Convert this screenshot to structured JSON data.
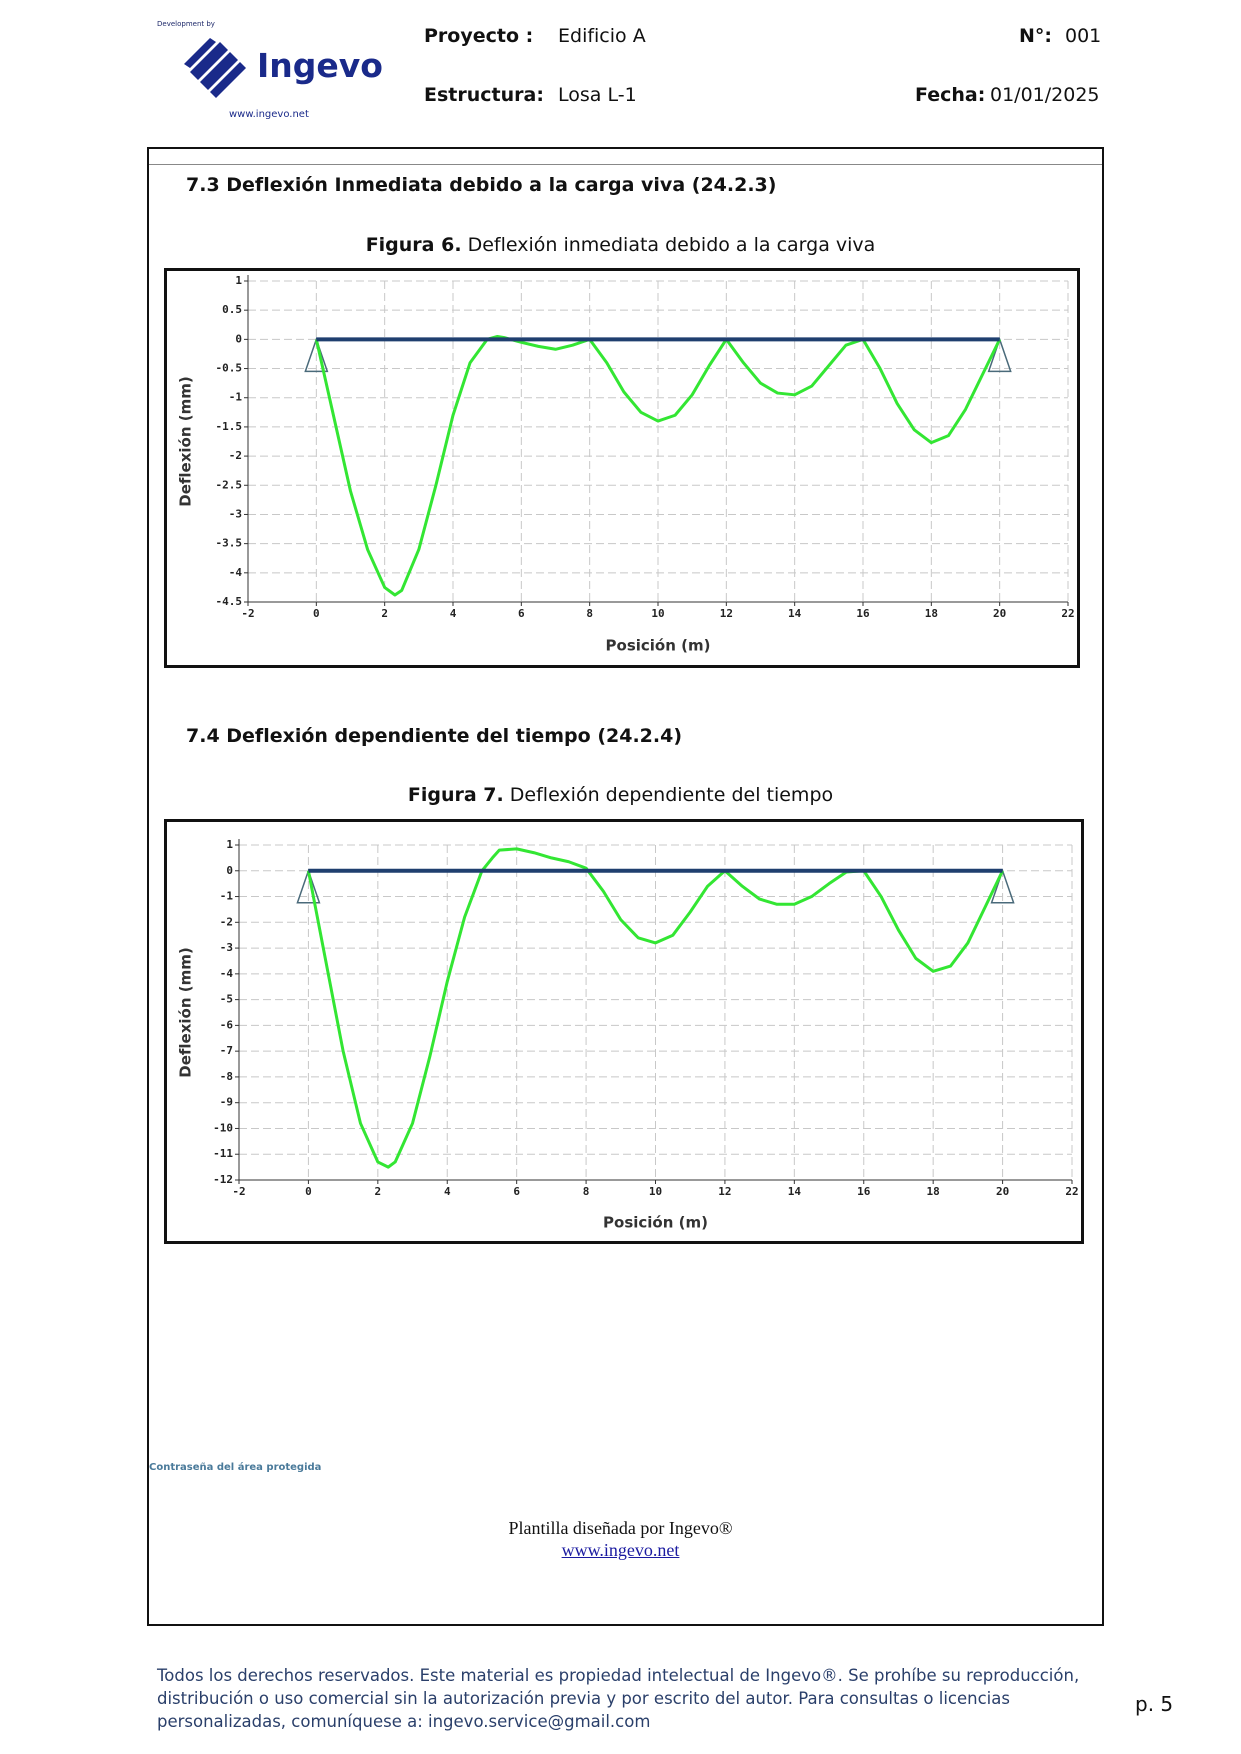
{
  "header": {
    "developed_by": "Development by",
    "logo_name": "Ingevo",
    "logo_url": "www.ingevo.net",
    "project_label": "Proyecto :",
    "project": "Edificio A",
    "number_label": "N°:",
    "number": "001",
    "structure_label": "Estructura:",
    "structure": "Losa L-1",
    "date_label": "Fecha:",
    "date": "01/01/2025"
  },
  "sections": [
    {
      "heading": "7.3 Deflexión Inmediata debido a la carga viva (24.2.3)",
      "figure_label": "Figura 6.",
      "figure_caption": "Deflexión inmediata debido a la carga viva"
    },
    {
      "heading": "7.4 Deflexión dependiente del tiempo (24.2.4)",
      "figure_label": "Figura 7.",
      "figure_caption": "Deflexión dependiente del tiempo"
    }
  ],
  "chart_data": [
    {
      "type": "line",
      "x_label": "Posición (m)",
      "y_label": "Deflexión (mm)",
      "grid": true,
      "xlim": [
        -2,
        22
      ],
      "xticks": [
        -2,
        0,
        2,
        4,
        6,
        8,
        10,
        12,
        14,
        16,
        18,
        20,
        22
      ],
      "ylim": [
        -4.5,
        1
      ],
      "yticks": [
        1,
        0.5,
        0,
        -0.5,
        -1,
        -1.5,
        -2,
        -2.5,
        -3,
        -3.5,
        -4,
        -4.5
      ],
      "series": [
        {
          "color": "#33e633",
          "x": [
            0,
            0.5,
            1,
            1.5,
            2,
            2.3,
            2.5,
            3,
            3.5,
            4,
            4.5,
            5,
            5.3,
            5.5,
            6,
            6.5,
            7,
            7.5,
            8,
            8.5,
            9,
            9.5,
            10,
            10.5,
            11,
            11.5,
            12,
            12.5,
            13,
            13.5,
            14,
            14.5,
            15,
            15.5,
            16,
            16.5,
            17,
            17.5,
            18,
            18.5,
            19,
            19.5,
            20
          ],
          "values": [
            0,
            -1.3,
            -2.6,
            -3.6,
            -4.25,
            -4.38,
            -4.3,
            -3.6,
            -2.5,
            -1.3,
            -0.4,
            0,
            0.05,
            0.03,
            -0.05,
            -0.12,
            -0.17,
            -0.1,
            0,
            -0.4,
            -0.9,
            -1.25,
            -1.4,
            -1.3,
            -0.95,
            -0.45,
            0,
            -0.4,
            -0.75,
            -0.92,
            -0.95,
            -0.8,
            -0.45,
            -0.1,
            0,
            -0.5,
            -1.1,
            -1.55,
            -1.77,
            -1.65,
            -1.2,
            -0.6,
            0
          ]
        },
        {
          "color": "#1f3f6f",
          "x": [
            0,
            20
          ],
          "values": [
            0,
            0
          ]
        }
      ]
    },
    {
      "type": "line",
      "x_label": "Posición (m)",
      "y_label": "Deflexión (mm)",
      "grid": true,
      "xlim": [
        -2,
        22
      ],
      "xticks": [
        -2,
        0,
        2,
        4,
        6,
        8,
        10,
        12,
        14,
        16,
        18,
        20,
        22
      ],
      "ylim": [
        -12,
        1
      ],
      "yticks": [
        1,
        0,
        -1,
        -2,
        -3,
        -4,
        -5,
        -6,
        -7,
        -8,
        -9,
        -10,
        -11,
        -12
      ],
      "series": [
        {
          "color": "#33e633",
          "x": [
            0,
            0.5,
            1,
            1.5,
            2,
            2.3,
            2.5,
            3,
            3.5,
            4,
            4.5,
            5,
            5.3,
            5.5,
            6,
            6.5,
            7,
            7.5,
            8,
            8.5,
            9,
            9.5,
            10,
            10.5,
            11,
            11.5,
            12,
            12.5,
            13,
            13.5,
            14,
            14.5,
            15,
            15.5,
            16,
            16.5,
            17,
            17.5,
            18,
            18.5,
            19,
            19.5,
            20
          ],
          "values": [
            0,
            -3.5,
            -7,
            -9.8,
            -11.3,
            -11.5,
            -11.3,
            -9.8,
            -7.2,
            -4.3,
            -1.8,
            0,
            0.5,
            0.8,
            0.85,
            0.7,
            0.5,
            0.35,
            0.1,
            -0.8,
            -1.9,
            -2.6,
            -2.8,
            -2.5,
            -1.6,
            -0.6,
            0,
            -0.6,
            -1.1,
            -1.3,
            -1.3,
            -1.0,
            -0.5,
            -0.05,
            0,
            -1.0,
            -2.3,
            -3.4,
            -3.9,
            -3.7,
            -2.8,
            -1.4,
            0
          ]
        },
        {
          "color": "#1f3f6f",
          "x": [
            0,
            20
          ],
          "values": [
            0,
            0
          ]
        }
      ]
    }
  ],
  "protected_note": "Contraseña del área protegida",
  "template": {
    "credit": "Plantilla diseñada por Ingevo®",
    "url": "www.ingevo.net"
  },
  "footer": {
    "rights": "Todos los derechos reservados. Este material es propiedad intelectual de Ingevo®. Se prohíbe su reproducción, distribución o uso comercial sin la autorización previa y por escrito del autor. Para consultas o licencias personalizadas, comuníquese a: ingevo.service@gmail.com",
    "page": "p. 5"
  }
}
